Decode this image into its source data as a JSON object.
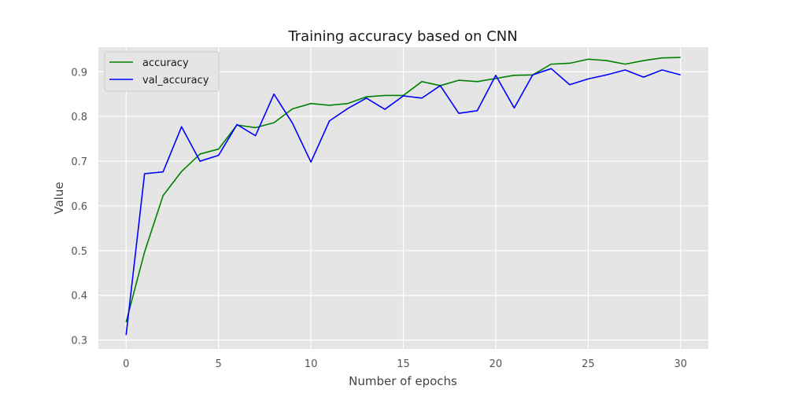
{
  "chart_data": {
    "type": "line",
    "title": "Training accuracy based on CNN",
    "xlabel": "Number of epochs",
    "ylabel": "Value",
    "xlim": [
      -1.5,
      31.5
    ],
    "ylim": [
      0.28,
      0.955
    ],
    "xticks": [
      0,
      5,
      10,
      15,
      20,
      25,
      30
    ],
    "yticks": [
      0.3,
      0.4,
      0.5,
      0.6,
      0.7,
      0.8,
      0.9
    ],
    "grid": true,
    "legend_position": "top-left",
    "x": [
      0,
      1,
      2,
      3,
      4,
      5,
      6,
      7,
      8,
      9,
      10,
      11,
      12,
      13,
      14,
      15,
      16,
      17,
      18,
      19,
      20,
      21,
      22,
      23,
      24,
      25,
      26,
      27,
      28,
      29,
      30
    ],
    "series": [
      {
        "name": "accuracy",
        "color": "#008000",
        "values": [
          0.34,
          0.497,
          0.623,
          0.677,
          0.716,
          0.727,
          0.781,
          0.775,
          0.786,
          0.817,
          0.829,
          0.825,
          0.829,
          0.844,
          0.847,
          0.847,
          0.878,
          0.869,
          0.881,
          0.878,
          0.885,
          0.892,
          0.893,
          0.917,
          0.919,
          0.928,
          0.925,
          0.917,
          0.925,
          0.931,
          0.932
        ]
      },
      {
        "name": "val_accuracy",
        "color": "#0000ff",
        "values": [
          0.311,
          0.672,
          0.676,
          0.777,
          0.7,
          0.713,
          0.782,
          0.757,
          0.85,
          0.785,
          0.698,
          0.79,
          0.818,
          0.841,
          0.816,
          0.846,
          0.841,
          0.869,
          0.807,
          0.813,
          0.892,
          0.819,
          0.893,
          0.907,
          0.871,
          0.884,
          0.893,
          0.904,
          0.888,
          0.904,
          0.893
        ]
      }
    ]
  }
}
